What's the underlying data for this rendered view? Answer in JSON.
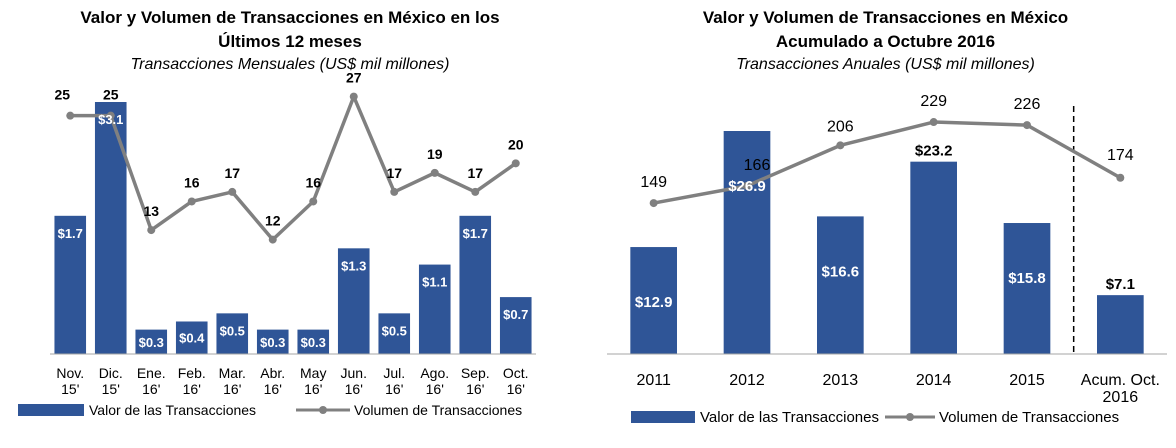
{
  "charts": {
    "left": {
      "title_line1": "Valor y Volumen de Transacciones en México en los",
      "title_line2": "Últimos 12 meses",
      "subtitle": "Transacciones Mensuales (US$ mil millones)"
    },
    "right": {
      "title_line1": "Valor y Volumen de Transacciones en México",
      "title_line2": "Acumulado a Octubre 2016",
      "subtitle": "Transacciones Anuales (US$ mil millones)"
    }
  },
  "colors": {
    "bar": "#2f5597",
    "line": "#808080",
    "axis": "#a6a6a6",
    "text": "#000000",
    "bar_label": "#ffffff"
  },
  "chart_data": [
    {
      "type": "bar",
      "title": "Valor y Volumen de Transacciones en México en los Últimos 12 meses",
      "subtitle": "Transacciones Mensuales (US$ mil millones)",
      "categories": [
        [
          "Nov.",
          "15'"
        ],
        [
          "Dic.",
          "15'"
        ],
        [
          "Ene.",
          "16'"
        ],
        [
          "Feb.",
          "16'"
        ],
        [
          "Mar.",
          "16'"
        ],
        [
          "Abr.",
          "16'"
        ],
        [
          "May",
          "16'"
        ],
        [
          "Jun.",
          "16'"
        ],
        [
          "Jul.",
          "16'"
        ],
        [
          "Ago.",
          "16'"
        ],
        [
          "Sep.",
          "16'"
        ],
        [
          "Oct.",
          "16'"
        ]
      ],
      "series": [
        {
          "name": "Valor de las Transacciones",
          "type": "bar",
          "values": [
            1.7,
            3.1,
            0.3,
            0.4,
            0.5,
            0.3,
            0.3,
            1.3,
            0.5,
            1.1,
            1.7,
            0.7
          ],
          "labels": [
            "$1.7",
            "$3.1",
            "$0.3",
            "$0.4",
            "$0.5",
            "$0.3",
            "$0.3",
            "$1.3",
            "$0.5",
            "$1.1",
            "$1.7",
            "$0.7"
          ]
        },
        {
          "name": "Volumen de Transacciones",
          "type": "line",
          "values": [
            25,
            25,
            13,
            16,
            17,
            12,
            16,
            27,
            17,
            19,
            17,
            20
          ],
          "labels": [
            "25",
            "25",
            "13",
            "16",
            "17",
            "12",
            "16",
            "27",
            "17",
            "19",
            "17",
            "20"
          ]
        }
      ],
      "bar_ylim": [
        0,
        3.1
      ],
      "line_ylim": [
        0,
        30
      ],
      "legend": "bottom"
    },
    {
      "type": "bar",
      "title": "Valor y Volumen de Transacciones en México Acumulado a Octubre 2016",
      "subtitle": "Transacciones Anuales (US$ mil millones)",
      "categories": [
        [
          "2011"
        ],
        [
          "2012"
        ],
        [
          "2013"
        ],
        [
          "2014"
        ],
        [
          "2015"
        ],
        [
          "Acum. Oct.",
          "2016"
        ]
      ],
      "series": [
        {
          "name": "Valor de las Transacciones",
          "type": "bar",
          "values": [
            12.9,
            26.9,
            16.6,
            23.2,
            15.8,
            7.1
          ],
          "labels": [
            "$12.9",
            "$26.9",
            "$16.6",
            "$23.2",
            "$15.8",
            "$7.1"
          ]
        },
        {
          "name": "Volumen de Transacciones",
          "type": "line",
          "values": [
            149,
            166,
            206,
            229,
            226,
            174
          ],
          "labels": [
            "149",
            "166",
            "206",
            "229",
            "226",
            "174"
          ]
        }
      ],
      "bar_ylim": [
        0,
        26.9
      ],
      "line_ylim": [
        0,
        310
      ],
      "legend": "bottom"
    }
  ]
}
